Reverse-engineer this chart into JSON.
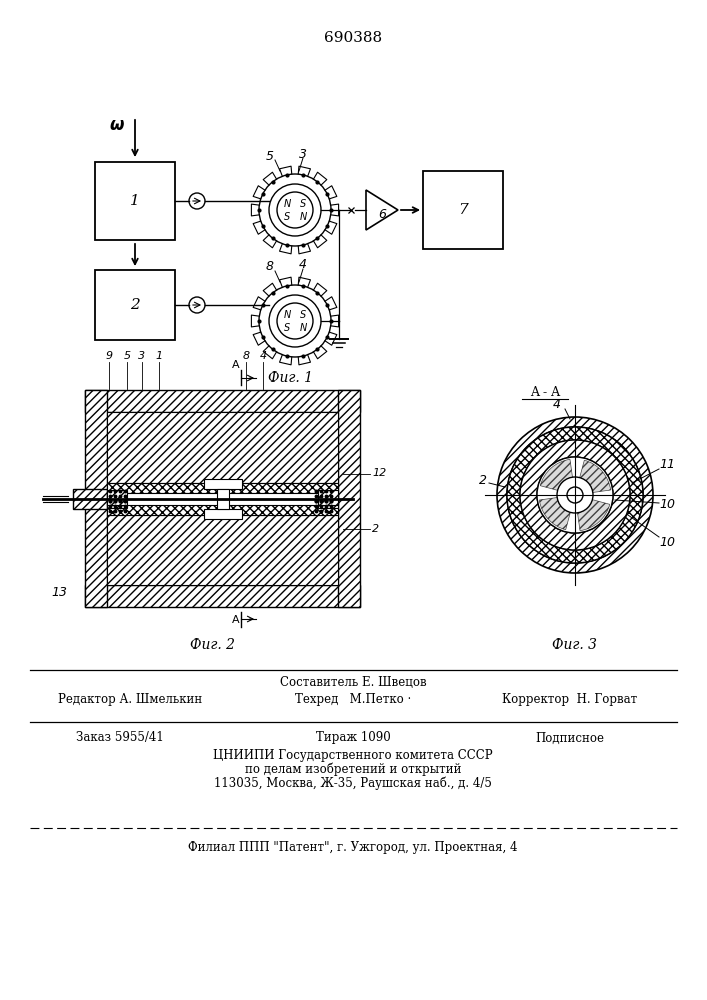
{
  "patent_number": "690388",
  "fig1_caption": "Фиг. 1",
  "fig2_caption": "Фиг. 2",
  "fig3_caption": "Фиг. 3",
  "section_label": "A - A",
  "omega_label": "ω",
  "bg_color": "#ffffff",
  "line_color": "#000000",
  "footer_sestavitel": "Составитель Е. Швецов",
  "footer_redaktor": "Редактор А. Шмелькин",
  "footer_tekhred": "Техред   М.Петко ·",
  "footer_korrektor": "Корректор  Н. Горват",
  "footer_zakaz": "Заказ 5955/41",
  "footer_tirazh": "Тираж 1090",
  "footer_podpisnoe": "Подписное",
  "footer_tsniipi1": "ЦНИИПИ Государственного комитета СССР",
  "footer_tsniipi2": "по делам изобретений и открытий",
  "footer_address": "113035, Москва, Ж-35, Раушская наб., д. 4/5",
  "footer_filial": "Филиал ППП \"Патент\", г. Ужгород, ул. Проектная, 4"
}
